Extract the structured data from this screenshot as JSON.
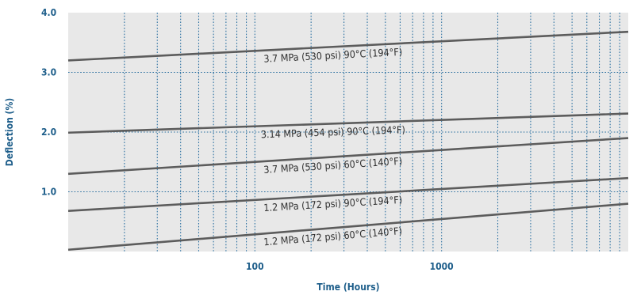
{
  "chart_data": {
    "type": "line",
    "xlabel": "Time (Hours)",
    "ylabel": "Deflection (%)",
    "x_scale": "log",
    "xlim": [
      10,
      10000
    ],
    "ylim": [
      0,
      4.0
    ],
    "x_ticks": [
      {
        "value": 100,
        "label": "100"
      },
      {
        "value": 1000,
        "label": "1000"
      }
    ],
    "y_ticks": [
      {
        "value": 1.0,
        "label": "1.0"
      },
      {
        "value": 2.0,
        "label": "2.0"
      },
      {
        "value": 3.0,
        "label": "3.0"
      },
      {
        "value": 4.0,
        "label": "4.0"
      }
    ],
    "grid": true,
    "series": [
      {
        "name": "3.7 MPa (530 psi) 90°C (194°F)",
        "x": [
          10,
          10000
        ],
        "y": [
          3.2,
          3.68
        ]
      },
      {
        "name": "3.14 MPa (454 psi) 90°C (194°F)",
        "x": [
          10,
          10000
        ],
        "y": [
          1.99,
          2.31
        ]
      },
      {
        "name": "3.7 MPa (530 psi) 60°C (140°F)",
        "x": [
          10,
          10000
        ],
        "y": [
          1.3,
          1.9
        ]
      },
      {
        "name": "1.2 MPa (172 psi) 90°C (194°F)",
        "x": [
          10,
          10000
        ],
        "y": [
          0.68,
          1.23
        ]
      },
      {
        "name": "1.2 MPa (172 psi) 60°C (140°F)",
        "x": [
          10,
          10000
        ],
        "y": [
          0.03,
          0.8
        ]
      }
    ],
    "colors": {
      "plot_background": "#e8e8e8",
      "grid": "#2a6fa0",
      "line": "#5c5c5c",
      "axis_text": "#1f5f8b"
    }
  }
}
